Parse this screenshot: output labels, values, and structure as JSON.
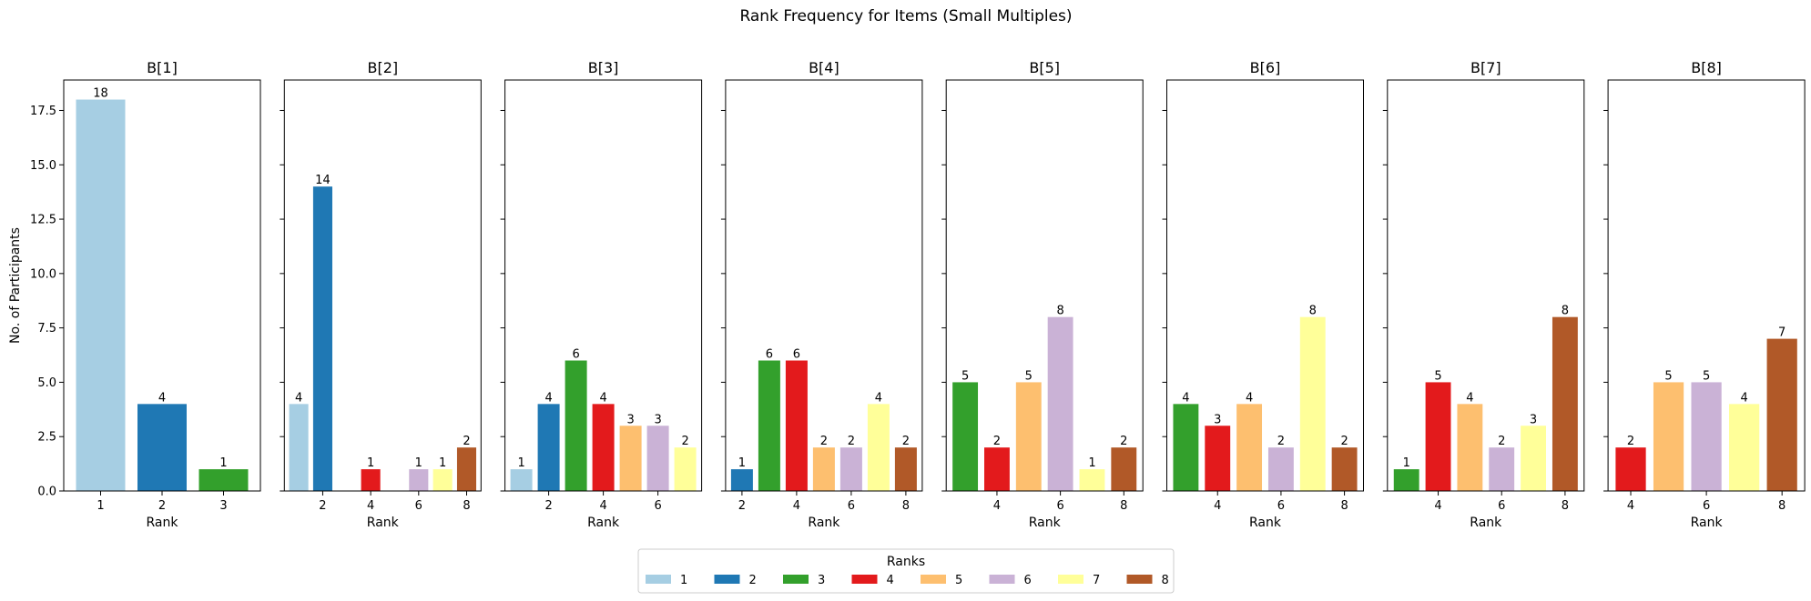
{
  "chart_data": {
    "type": "bar",
    "title": "Rank Frequency for Items (Small Multiples)",
    "ylabel": "No. of Participants",
    "xlabel": "Rank",
    "ylim": [
      0,
      18.9
    ],
    "xlim": [
      0.4,
      8.6
    ],
    "yticks": [
      "0.0",
      "2.5",
      "5.0",
      "7.5",
      "10.0",
      "12.5",
      "15.0",
      "17.5"
    ],
    "ytick_values": [
      0,
      2.5,
      5,
      7.5,
      10,
      12.5,
      15,
      17.5
    ],
    "legend": {
      "title": "Ranks",
      "placement": "bottom-center",
      "entries": [
        "1",
        "2",
        "3",
        "4",
        "5",
        "6",
        "7",
        "8"
      ]
    },
    "colors": {
      "1": "#a6cee3",
      "2": "#1f78b4",
      "3": "#33a02c",
      "4": "#e31a1c",
      "5": "#fdbf6f",
      "6": "#cab2d6",
      "7": "#ffff99",
      "8": "#b15928"
    },
    "panels": [
      {
        "title": "B[1]",
        "xlim": [
          0.4,
          3.6
        ],
        "xticks": [
          1,
          2,
          3
        ],
        "bars": [
          {
            "rank": 1,
            "value": 18
          },
          {
            "rank": 2,
            "value": 4
          },
          {
            "rank": 3,
            "value": 1
          }
        ]
      },
      {
        "title": "B[2]",
        "xticks": [
          2,
          4,
          6,
          8
        ],
        "bars": [
          {
            "rank": 1,
            "value": 4
          },
          {
            "rank": 2,
            "value": 14
          },
          {
            "rank": 4,
            "value": 1
          },
          {
            "rank": 6,
            "value": 1
          },
          {
            "rank": 7,
            "value": 1
          },
          {
            "rank": 8,
            "value": 2
          }
        ]
      },
      {
        "title": "B[3]",
        "xlim": [
          0.4,
          7.6
        ],
        "xticks": [
          2,
          4,
          6
        ],
        "bars": [
          {
            "rank": 1,
            "value": 1
          },
          {
            "rank": 2,
            "value": 4
          },
          {
            "rank": 3,
            "value": 6
          },
          {
            "rank": 4,
            "value": 4
          },
          {
            "rank": 5,
            "value": 3
          },
          {
            "rank": 6,
            "value": 3
          },
          {
            "rank": 7,
            "value": 2
          }
        ]
      },
      {
        "title": "B[4]",
        "xlim": [
          1.4,
          8.6
        ],
        "xticks": [
          2,
          4,
          6,
          8
        ],
        "bars": [
          {
            "rank": 2,
            "value": 1
          },
          {
            "rank": 3,
            "value": 6
          },
          {
            "rank": 4,
            "value": 6
          },
          {
            "rank": 5,
            "value": 2
          },
          {
            "rank": 6,
            "value": 2
          },
          {
            "rank": 7,
            "value": 4
          },
          {
            "rank": 8,
            "value": 2
          }
        ]
      },
      {
        "title": "B[5]",
        "xlim": [
          2.4,
          8.6
        ],
        "xticks": [
          4,
          6,
          8
        ],
        "bars": [
          {
            "rank": 3,
            "value": 5
          },
          {
            "rank": 4,
            "value": 2
          },
          {
            "rank": 5,
            "value": 5
          },
          {
            "rank": 6,
            "value": 8
          },
          {
            "rank": 7,
            "value": 1
          },
          {
            "rank": 8,
            "value": 2
          }
        ]
      },
      {
        "title": "B[6]",
        "xlim": [
          2.4,
          8.6
        ],
        "xticks": [
          4,
          6,
          8
        ],
        "bars": [
          {
            "rank": 3,
            "value": 4
          },
          {
            "rank": 4,
            "value": 3
          },
          {
            "rank": 5,
            "value": 4
          },
          {
            "rank": 6,
            "value": 2
          },
          {
            "rank": 7,
            "value": 8
          },
          {
            "rank": 8,
            "value": 2
          }
        ]
      },
      {
        "title": "B[7]",
        "xlim": [
          2.4,
          8.6
        ],
        "xticks": [
          4,
          6,
          8
        ],
        "bars": [
          {
            "rank": 3,
            "value": 1
          },
          {
            "rank": 4,
            "value": 5
          },
          {
            "rank": 5,
            "value": 4
          },
          {
            "rank": 6,
            "value": 2
          },
          {
            "rank": 7,
            "value": 3
          },
          {
            "rank": 8,
            "value": 8
          }
        ]
      },
      {
        "title": "B[8]",
        "xlim": [
          3.4,
          8.6
        ],
        "xticks": [
          4,
          6,
          8
        ],
        "bars": [
          {
            "rank": 4,
            "value": 2
          },
          {
            "rank": 5,
            "value": 5
          },
          {
            "rank": 6,
            "value": 5
          },
          {
            "rank": 7,
            "value": 4
          },
          {
            "rank": 8,
            "value": 7
          }
        ]
      }
    ]
  }
}
